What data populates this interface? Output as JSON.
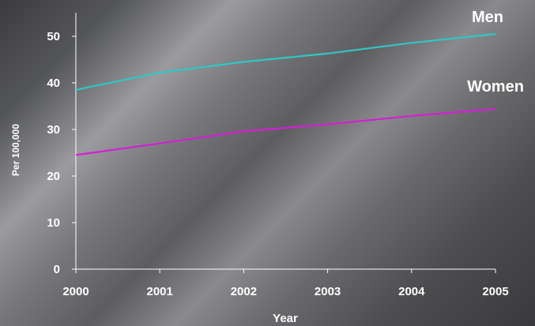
{
  "chart_data": {
    "type": "line",
    "title": "",
    "xlabel": "Year",
    "ylabel": "Per 100,000",
    "x": [
      "2000",
      "2001",
      "2002",
      "2003",
      "2004",
      "2005"
    ],
    "ylim": [
      0,
      55
    ],
    "yticks": [
      "0",
      "10",
      "20",
      "30",
      "40",
      "50"
    ],
    "grid": false,
    "legend": "inline-labels",
    "series": [
      {
        "name": "Men",
        "color": "#2ec8c4",
        "values": [
          38.5,
          42.2,
          44.5,
          46.3,
          48.6,
          50.5
        ]
      },
      {
        "name": "Women",
        "color": "#d41fd4",
        "values": [
          24.5,
          27.0,
          29.6,
          31.1,
          32.9,
          34.4
        ]
      }
    ]
  }
}
